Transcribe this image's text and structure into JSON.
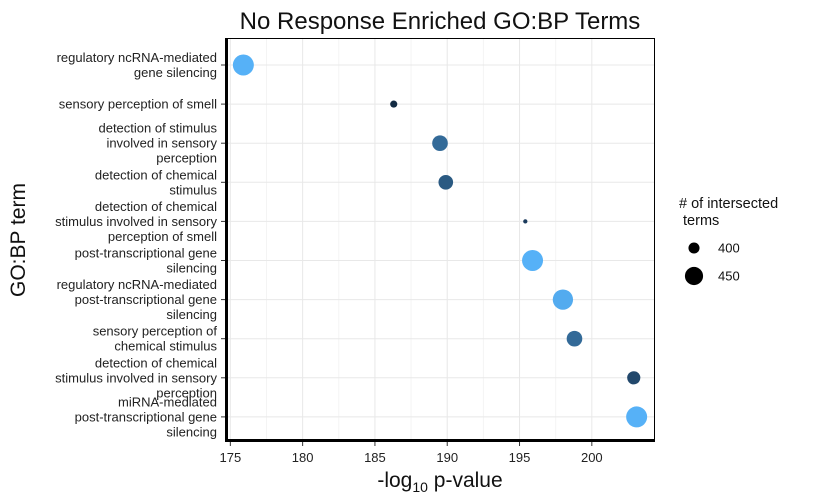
{
  "chart_data": {
    "type": "scatter",
    "title": "No Response Enriched GO:BP Terms",
    "xlabel": {
      "prefix": "-log",
      "sub": "10",
      "suffix": " p-value"
    },
    "ylabel": "GO:BP term",
    "xlim": [
      174.7,
      204.3
    ],
    "x_ticks": [
      175,
      180,
      185,
      190,
      195,
      200
    ],
    "grid": true,
    "legend": {
      "title_lines": [
        "# of intersected",
        " terms"
      ],
      "entries": [
        {
          "label": "400",
          "size": 400
        },
        {
          "label": "450",
          "size": 450
        }
      ],
      "placement": "right"
    },
    "categories": [
      {
        "lines": [
          "regulatory ncRNA-mediated",
          "gene silencing"
        ]
      },
      {
        "lines": [
          "sensory perception of smell"
        ]
      },
      {
        "lines": [
          "detection of stimulus",
          "involved in sensory",
          "perception"
        ]
      },
      {
        "lines": [
          "detection of chemical",
          "stimulus"
        ]
      },
      {
        "lines": [
          "detection of chemical",
          "stimulus involved in sensory",
          "perception of smell"
        ]
      },
      {
        "lines": [
          "post-transcriptional gene",
          "silencing"
        ]
      },
      {
        "lines": [
          "regulatory ncRNA-mediated",
          "post-transcriptional gene",
          "silencing"
        ]
      },
      {
        "lines": [
          "sensory perception of",
          "chemical stimulus"
        ]
      },
      {
        "lines": [
          "detection of chemical",
          "stimulus involved in sensory",
          "perception"
        ]
      },
      {
        "lines": [
          "miRNA-mediated",
          "post-transcriptional gene",
          "silencing"
        ]
      }
    ],
    "points": [
      {
        "x": 175.9,
        "size": 470,
        "color": "#56B1F7"
      },
      {
        "x": 186.3,
        "size": 372,
        "color": "#132B43"
      },
      {
        "x": 189.5,
        "size": 432,
        "color": "#336A98"
      },
      {
        "x": 189.9,
        "size": 425,
        "color": "#2A5A82"
      },
      {
        "x": 195.4,
        "size": 352,
        "color": "#1B3A5C"
      },
      {
        "x": 195.9,
        "size": 470,
        "color": "#56B1F7"
      },
      {
        "x": 198.0,
        "size": 465,
        "color": "#53ABEF"
      },
      {
        "x": 198.8,
        "size": 432,
        "color": "#336A98"
      },
      {
        "x": 202.9,
        "size": 415,
        "color": "#22486C"
      },
      {
        "x": 203.1,
        "size": 470,
        "color": "#56B1F7"
      }
    ]
  }
}
